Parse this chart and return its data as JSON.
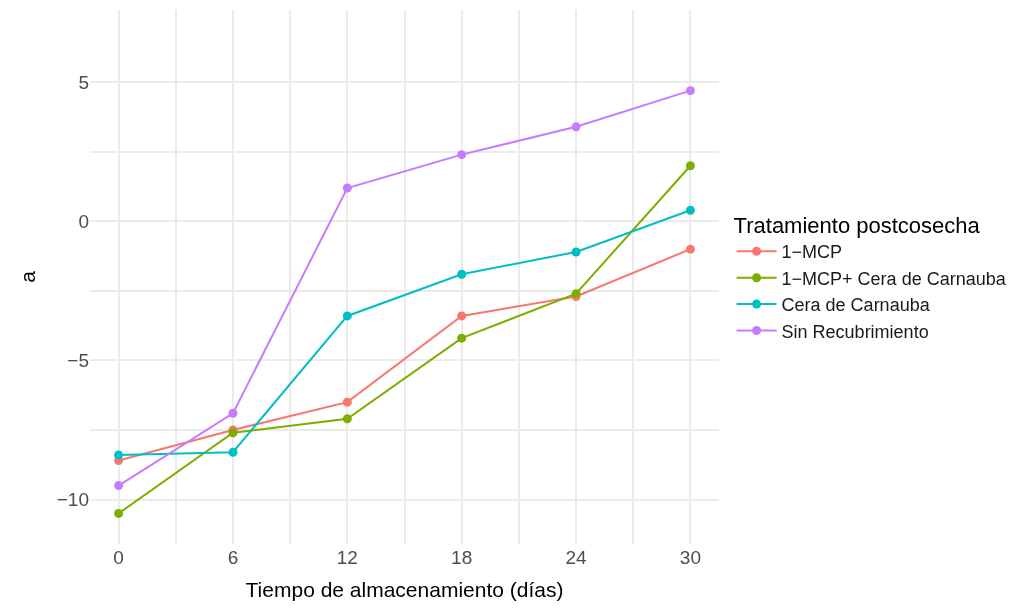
{
  "chart_data": {
    "type": "line",
    "xlabel": "Tiempo de almacenamiento (días)",
    "ylabel": "a",
    "legend_title": "Tratamiento postcosecha",
    "x": [
      0,
      6,
      12,
      18,
      24,
      30
    ],
    "series": [
      {
        "name": "1−MCP",
        "color": "#f8766d",
        "values": [
          -8.6,
          -7.5,
          -6.5,
          -3.4,
          -2.7,
          -1.0
        ]
      },
      {
        "name": "1−MCP+ Cera de Carnauba",
        "color": "#7cae00",
        "values": [
          -10.5,
          -7.6,
          -7.1,
          -4.2,
          -2.6,
          2.0
        ]
      },
      {
        "name": "Cera de Carnauba",
        "color": "#00bfc4",
        "values": [
          -8.4,
          -8.3,
          -3.4,
          -1.9,
          -1.1,
          0.4
        ]
      },
      {
        "name": "Sin Recubrimiento",
        "color": "#c77cff",
        "values": [
          -9.5,
          -6.9,
          1.2,
          2.4,
          3.4,
          4.7
        ]
      }
    ],
    "xlim": [
      -1.5,
      31.5
    ],
    "ylim": [
      -11.6,
      7.6
    ],
    "xticks": [
      0,
      {
        "value": 3,
        "label": null
      },
      6,
      {
        "value": 9,
        "label": null
      },
      12,
      {
        "value": 15,
        "label": null
      },
      18,
      {
        "value": 21,
        "label": null
      },
      24,
      {
        "value": 27,
        "label": null
      },
      30
    ],
    "yticks": [
      {
        "value": -10,
        "label": "−10"
      },
      {
        "value": -7.5,
        "label": null
      },
      {
        "value": -5,
        "label": "−5"
      },
      {
        "value": -2.5,
        "label": null
      },
      0,
      {
        "value": 2.5,
        "label": null
      },
      5
    ],
    "grid": true,
    "legend": "right",
    "marker": "circle",
    "line_style": "solid"
  }
}
